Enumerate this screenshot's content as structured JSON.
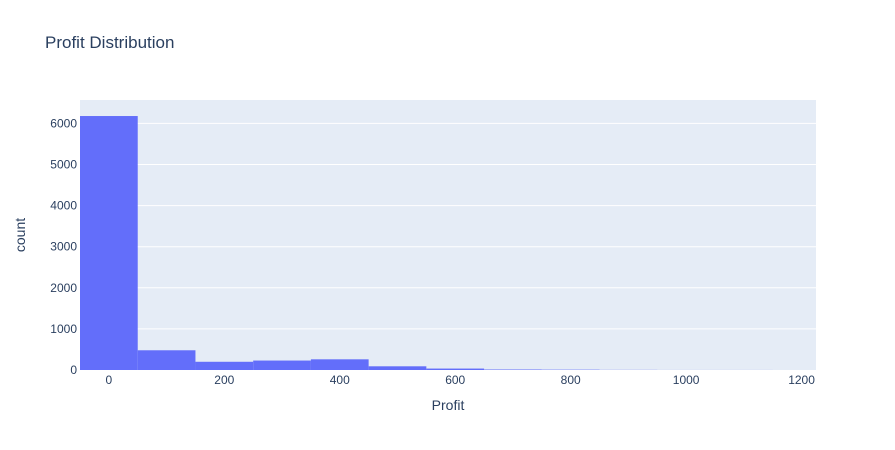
{
  "chart_data": {
    "type": "bar",
    "title": "Profit Distribution",
    "xlabel": "Profit",
    "ylabel": "count",
    "grid": true,
    "bar_color": "#636efa",
    "plot_bg": "#e5ecf6",
    "xlim": [
      -50,
      1225
    ],
    "ylim": [
      0,
      6570
    ],
    "x_ticks": [
      0,
      200,
      400,
      600,
      800,
      1000,
      1200
    ],
    "y_ticks": [
      0,
      1000,
      2000,
      3000,
      4000,
      5000,
      6000
    ],
    "bins": [
      {
        "x0": -50,
        "x1": 50,
        "count": 6180
      },
      {
        "x0": 50,
        "x1": 150,
        "count": 480
      },
      {
        "x0": 150,
        "x1": 250,
        "count": 200
      },
      {
        "x0": 250,
        "x1": 350,
        "count": 230
      },
      {
        "x0": 350,
        "x1": 450,
        "count": 260
      },
      {
        "x0": 450,
        "x1": 550,
        "count": 90
      },
      {
        "x0": 550,
        "x1": 650,
        "count": 35
      },
      {
        "x0": 650,
        "x1": 750,
        "count": 12
      },
      {
        "x0": 750,
        "x1": 850,
        "count": 8
      },
      {
        "x0": 850,
        "x1": 950,
        "count": 3
      },
      {
        "x0": 950,
        "x1": 1050,
        "count": 1
      },
      {
        "x0": 1050,
        "x1": 1150,
        "count": 1
      }
    ]
  }
}
